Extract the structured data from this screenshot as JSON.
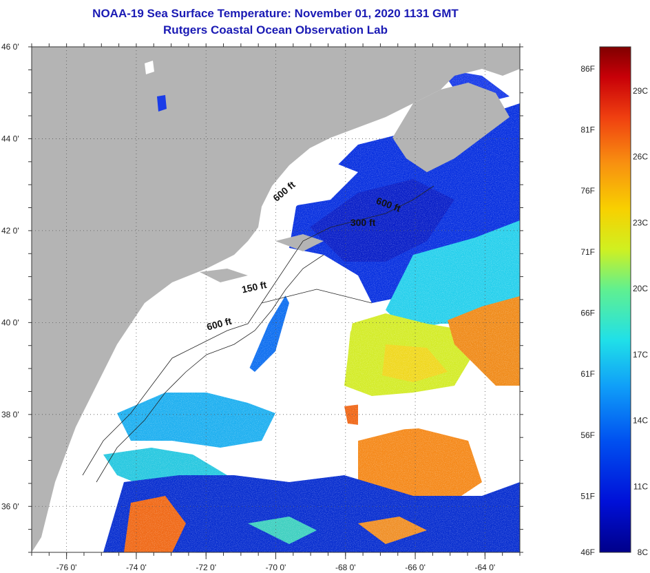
{
  "header": {
    "title": "NOAA-19 Sea Surface Temperature:  November 01, 2020 1131 GMT",
    "subtitle": "Rutgers Coastal Ocean Observation Lab"
  },
  "map": {
    "lon_range": [
      -77,
      -63
    ],
    "lat_range": [
      35,
      46
    ],
    "lon_ticks": [
      {
        "value": -76,
        "label": "-76 0'"
      },
      {
        "value": -74,
        "label": "-74 0'"
      },
      {
        "value": -72,
        "label": "-72 0'"
      },
      {
        "value": -70,
        "label": "-70 0'"
      },
      {
        "value": -68,
        "label": "-68 0'"
      },
      {
        "value": -66,
        "label": "-66 0'"
      },
      {
        "value": -64,
        "label": "-64 0'"
      }
    ],
    "lat_ticks": [
      {
        "value": 46,
        "label": "46 0'"
      },
      {
        "value": 44,
        "label": "44 0'"
      },
      {
        "value": 42,
        "label": "42 0'"
      },
      {
        "value": 40,
        "label": "40 0'"
      },
      {
        "value": 38,
        "label": "38 0'"
      },
      {
        "value": 36,
        "label": "36 0'"
      }
    ],
    "contour_labels": [
      {
        "text": "600 ft",
        "lon": -69.7,
        "lat": 42.8,
        "angle": -40
      },
      {
        "text": "600 ft",
        "lon": -66.8,
        "lat": 42.5,
        "angle": 20
      },
      {
        "text": "300 ft",
        "lon": -67.5,
        "lat": 42.1,
        "angle": 0
      },
      {
        "text": "150 ft",
        "lon": -70.6,
        "lat": 40.7,
        "angle": -12
      },
      {
        "text": "600 ft",
        "lon": -71.6,
        "lat": 39.9,
        "angle": -15
      }
    ],
    "colors": {
      "land": "#b4b4b4",
      "cloud": "#ffffff",
      "sea_cold": "#0a2ad8",
      "sea_cool": "#19c8f0",
      "sea_mid": "#d8e82a",
      "sea_warm": "#f07018"
    }
  },
  "colorbar": {
    "range_c": [
      8,
      31
    ],
    "fahrenheit_labels": [
      {
        "value": 86,
        "label": "86F"
      },
      {
        "value": 81,
        "label": "81F"
      },
      {
        "value": 76,
        "label": "76F"
      },
      {
        "value": 71,
        "label": "71F"
      },
      {
        "value": 66,
        "label": "66F"
      },
      {
        "value": 61,
        "label": "61F"
      },
      {
        "value": 56,
        "label": "56F"
      },
      {
        "value": 51,
        "label": "51F"
      },
      {
        "value": 46,
        "label": "46F"
      }
    ],
    "celsius_labels": [
      {
        "value": 29,
        "label": "29C"
      },
      {
        "value": 26,
        "label": "26C"
      },
      {
        "value": 23,
        "label": "23C"
      },
      {
        "value": 20,
        "label": "20C"
      },
      {
        "value": 17,
        "label": "17C"
      },
      {
        "value": 14,
        "label": "14C"
      },
      {
        "value": 11,
        "label": "11C"
      },
      {
        "value": 8,
        "label": "8C"
      }
    ]
  }
}
